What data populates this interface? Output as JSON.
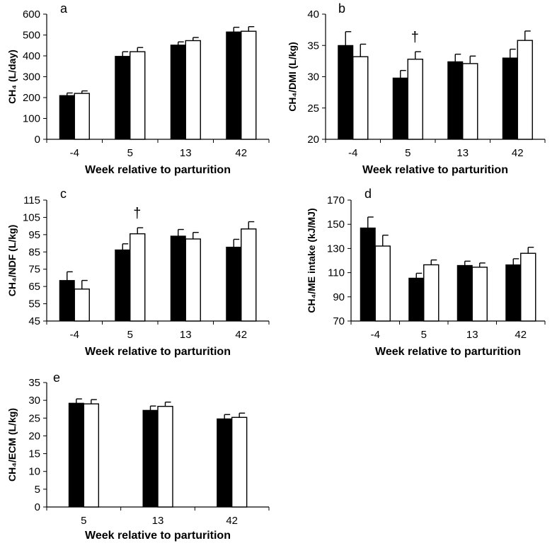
{
  "chart_data": [
    {
      "id": "a",
      "type": "bar",
      "panel_label": "a",
      "categories": [
        "-4",
        "5",
        "13",
        "42"
      ],
      "series": [
        {
          "name": "black",
          "color": "#000000",
          "values": [
            210,
            398,
            452,
            515
          ],
          "errors": [
            12,
            22,
            15,
            22
          ]
        },
        {
          "name": "white",
          "color": "#ffffff",
          "values": [
            220,
            420,
            473,
            518
          ],
          "errors": [
            12,
            20,
            15,
            22
          ]
        }
      ],
      "ylim": [
        0,
        600
      ],
      "yticks": [
        "0",
        "100",
        "200",
        "300",
        "400",
        "500",
        "600"
      ],
      "ylabel": "CH₄ (L/day)",
      "xlabel": "Week relative to parturition",
      "annotations": []
    },
    {
      "id": "b",
      "type": "bar",
      "panel_label": "b",
      "categories": [
        "-4",
        "5",
        "13",
        "42"
      ],
      "series": [
        {
          "name": "black",
          "color": "#000000",
          "values": [
            35.0,
            29.8,
            32.4,
            33.0
          ],
          "errors": [
            2.2,
            1.2,
            1.2,
            1.4
          ]
        },
        {
          "name": "white",
          "color": "#ffffff",
          "values": [
            33.2,
            32.8,
            32.1,
            35.8
          ],
          "errors": [
            2.0,
            1.2,
            1.2,
            1.5
          ]
        }
      ],
      "ylim": [
        20,
        40
      ],
      "yticks": [
        "20",
        "25",
        "30",
        "35",
        "40"
      ],
      "ylabel": "CH₄/DMI (L/kg)",
      "xlabel": "Week relative to parturition",
      "annotations": [
        {
          "text": "†",
          "category": "5"
        }
      ]
    },
    {
      "id": "c",
      "type": "bar",
      "panel_label": "c",
      "categories": [
        "-4",
        "5",
        "13",
        "42"
      ],
      "series": [
        {
          "name": "black",
          "color": "#000000",
          "values": [
            68.5,
            86.2,
            94.2,
            87.8
          ],
          "errors": [
            5.0,
            3.5,
            3.8,
            4.5
          ]
        },
        {
          "name": "white",
          "color": "#ffffff",
          "values": [
            63.5,
            95.5,
            92.5,
            98.3
          ],
          "errors": [
            5.0,
            3.5,
            3.8,
            4.2
          ]
        }
      ],
      "ylim": [
        45,
        115
      ],
      "yticks": [
        "45",
        "55",
        "65",
        "75",
        "85",
        "95",
        "105",
        "115"
      ],
      "ylabel": "CH₄/NDF (L/kg)",
      "xlabel": "Week relative to parturition",
      "annotations": [
        {
          "text": "†",
          "category": "5"
        }
      ]
    },
    {
      "id": "d",
      "type": "bar",
      "panel_label": "d",
      "categories": [
        "-4",
        "5",
        "13",
        "42"
      ],
      "series": [
        {
          "name": "black",
          "color": "#000000",
          "values": [
            147,
            105.5,
            116,
            116.5
          ],
          "errors": [
            9,
            4,
            3.5,
            5
          ]
        },
        {
          "name": "white",
          "color": "#ffffff",
          "values": [
            132,
            116.5,
            114.5,
            126
          ],
          "errors": [
            9,
            4,
            3.5,
            5
          ]
        }
      ],
      "ylim": [
        70,
        170
      ],
      "yticks": [
        "70",
        "90",
        "110",
        "130",
        "150",
        "170"
      ],
      "ylabel": "CH₄/ME intake (kJ/MJ)",
      "xlabel": "Week relative to parturition",
      "annotations": []
    },
    {
      "id": "e",
      "type": "bar",
      "panel_label": "e",
      "categories": [
        "5",
        "13",
        "42"
      ],
      "series": [
        {
          "name": "black",
          "color": "#000000",
          "values": [
            29.2,
            27.2,
            24.8
          ],
          "errors": [
            1.2,
            1.2,
            1.2
          ]
        },
        {
          "name": "white",
          "color": "#ffffff",
          "values": [
            29.0,
            28.3,
            25.2
          ],
          "errors": [
            1.2,
            1.2,
            1.2
          ]
        }
      ],
      "ylim": [
        0,
        35
      ],
      "yticks": [
        "0",
        "5",
        "10",
        "15",
        "20",
        "25",
        "30",
        "35"
      ],
      "ylabel": "CH₄/ECM (L/kg)",
      "xlabel": "Week relative to parturition",
      "annotations": []
    }
  ]
}
